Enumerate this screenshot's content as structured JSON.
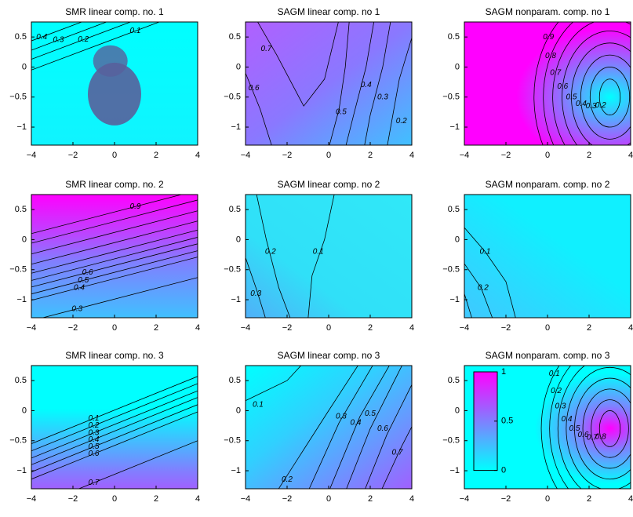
{
  "chart_data": [
    {
      "type": "contour",
      "title": "SMR linear comp. no. 1",
      "xlim": [
        -4,
        4
      ],
      "ylim": [
        -1.3,
        0.75
      ],
      "xticks": [
        {
          "value": -4,
          "label": "−4"
        },
        {
          "value": -2,
          "label": "−2"
        },
        0,
        2,
        4
      ],
      "yticks": [
        {
          "value": -1,
          "label": "−1"
        },
        {
          "value": -0.5,
          "label": "−0.5"
        },
        0,
        0.5
      ],
      "contour_levels": [
        0.4,
        0.3,
        0.2,
        0.1
      ],
      "scatter_color": "#58609c"
    },
    {
      "type": "contour",
      "title": "SAGM linear comp. no 1",
      "xlim": [
        -4,
        4
      ],
      "ylim": [
        -1.3,
        0.75
      ],
      "xticks": [
        {
          "value": -4,
          "label": "−4"
        },
        {
          "value": -2,
          "label": "−2"
        },
        0,
        2,
        4
      ],
      "yticks": [
        {
          "value": -1,
          "label": "−1"
        },
        {
          "value": -0.5,
          "label": "−0.5"
        },
        0,
        0.5
      ],
      "contour_levels": [
        0.7,
        0.6,
        0.5,
        0.4,
        0.3,
        0.2
      ]
    },
    {
      "type": "contour",
      "title": "SAGM nonparam. comp. no 1",
      "xlim": [
        -4,
        4
      ],
      "ylim": [
        -1.3,
        0.75
      ],
      "xticks": [
        {
          "value": -4,
          "label": "−4"
        },
        {
          "value": -2,
          "label": "−2"
        },
        0,
        2,
        4
      ],
      "yticks": [
        {
          "value": -1,
          "label": "−1"
        },
        {
          "value": -0.5,
          "label": "−0.5"
        },
        0,
        0.5
      ],
      "contour_levels": [
        0.9,
        0.8,
        0.7,
        0.6,
        0.5,
        0.4,
        0.3,
        0.2
      ]
    },
    {
      "type": "contour",
      "title": "SMR linear comp. no. 2",
      "xlim": [
        -4,
        4
      ],
      "ylim": [
        -1.3,
        0.75
      ],
      "xticks": [
        {
          "value": -4,
          "label": "−4"
        },
        {
          "value": -2,
          "label": "−2"
        },
        0,
        2,
        4
      ],
      "yticks": [
        {
          "value": -1,
          "label": "−1"
        },
        {
          "value": -0.5,
          "label": "−0.5"
        },
        0,
        0.5
      ],
      "contour_levels": [
        0.9,
        0.6,
        0.5,
        0.4,
        0.3
      ]
    },
    {
      "type": "contour",
      "title": "SAGM linear comp. no 2",
      "xlim": [
        -4,
        4
      ],
      "ylim": [
        -1.3,
        0.75
      ],
      "xticks": [
        {
          "value": -4,
          "label": "−4"
        },
        {
          "value": -2,
          "label": "−2"
        },
        0,
        2,
        4
      ],
      "yticks": [
        {
          "value": -1,
          "label": "−1"
        },
        {
          "value": -0.5,
          "label": "−0.5"
        },
        0,
        0.5
      ],
      "contour_levels": [
        0.3,
        0.2,
        0.1
      ]
    },
    {
      "type": "contour",
      "title": "SAGM nonparam. comp. no 2",
      "xlim": [
        -4,
        4
      ],
      "ylim": [
        -1.3,
        0.75
      ],
      "xticks": [
        {
          "value": -4,
          "label": "−4"
        },
        {
          "value": -2,
          "label": "−2"
        },
        0,
        2,
        4
      ],
      "yticks": [
        {
          "value": -1,
          "label": "−1"
        },
        {
          "value": -0.5,
          "label": "−0.5"
        },
        0,
        0.5
      ],
      "contour_levels": [
        0.1,
        0.2
      ]
    },
    {
      "type": "contour",
      "title": "SMR linear comp. no. 3",
      "xlim": [
        -4,
        4
      ],
      "ylim": [
        -1.3,
        0.75
      ],
      "xticks": [
        {
          "value": -4,
          "label": "−4"
        },
        {
          "value": -2,
          "label": "−2"
        },
        0,
        2,
        4
      ],
      "yticks": [
        {
          "value": -1,
          "label": "−1"
        },
        {
          "value": -0.5,
          "label": "−0.5"
        },
        0,
        0.5
      ],
      "contour_levels": [
        0.1,
        0.2,
        0.3,
        0.4,
        0.5,
        0.6,
        0.7
      ]
    },
    {
      "type": "contour",
      "title": "SAGM linear comp. no 3",
      "xlim": [
        -4,
        4
      ],
      "ylim": [
        -1.3,
        0.75
      ],
      "xticks": [
        {
          "value": -4,
          "label": "−4"
        },
        {
          "value": -2,
          "label": "−2"
        },
        0,
        2,
        4
      ],
      "yticks": [
        {
          "value": -1,
          "label": "−1"
        },
        {
          "value": -0.5,
          "label": "−0.5"
        },
        0,
        0.5
      ],
      "contour_levels": [
        0.1,
        0.2,
        0.3,
        0.4,
        0.5,
        0.6,
        0.7
      ]
    },
    {
      "type": "contour",
      "title": "SAGM nonparam. comp. no 3",
      "xlim": [
        -4,
        4
      ],
      "ylim": [
        -1.3,
        0.75
      ],
      "xticks": [
        {
          "value": -4,
          "label": "−4"
        },
        {
          "value": -2,
          "label": "−2"
        },
        0,
        2,
        4
      ],
      "yticks": [
        {
          "value": -1,
          "label": "−1"
        },
        {
          "value": -0.5,
          "label": "−0.5"
        },
        0,
        0.5
      ],
      "contour_levels": [
        0.8,
        0.7,
        0.6,
        0.5,
        0.4,
        0.3,
        0.2,
        0.1
      ],
      "colorbar": {
        "colormap": [
          "#00ffff",
          "#ff00ff"
        ],
        "ticks": [
          0,
          0.5,
          1
        ]
      }
    }
  ]
}
